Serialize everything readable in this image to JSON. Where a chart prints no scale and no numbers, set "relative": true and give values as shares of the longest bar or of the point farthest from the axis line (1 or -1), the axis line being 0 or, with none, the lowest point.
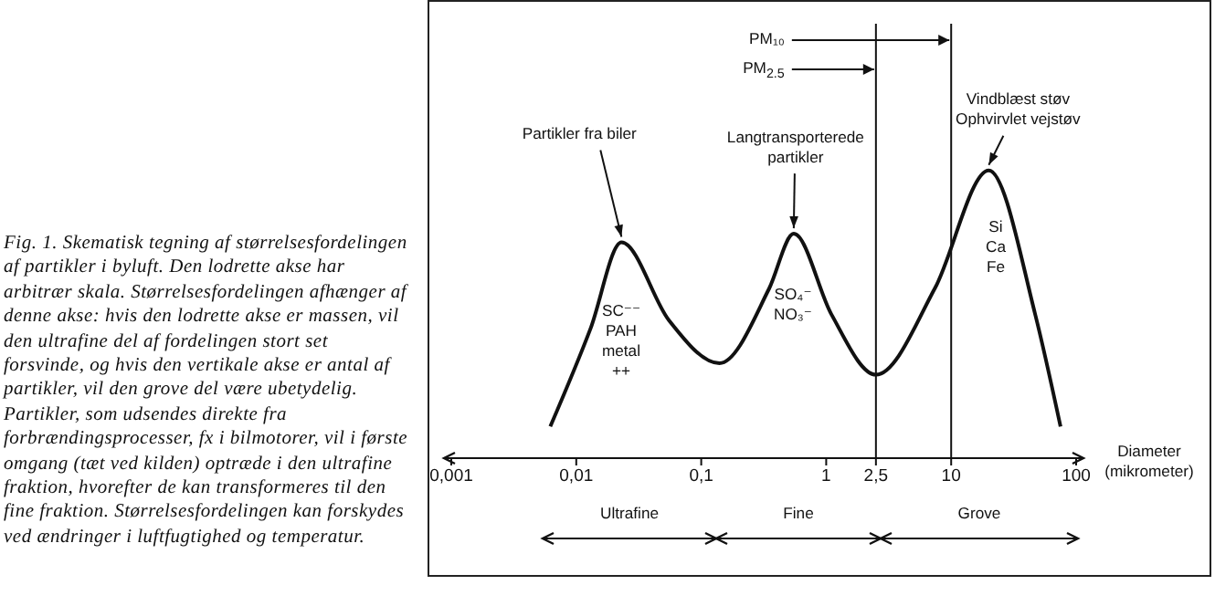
{
  "chart_data": {
    "type": "line",
    "relative": true,
    "log": "x",
    "xlim": [
      0.001,
      100
    ],
    "xticks": [
      {
        "value": 0.001,
        "label": "0,001"
      },
      {
        "value": 0.01,
        "label": "0,01"
      },
      {
        "value": 0.1,
        "label": "0,1"
      },
      1,
      {
        "value": 2.5,
        "label": "2,5"
      },
      10,
      100
    ],
    "xlabel": "Diameter (mikrometer)",
    "x": [
      0.0062,
      0.013,
      0.023,
      0.055,
      0.14,
      0.35,
      0.55,
      1.1,
      2.5,
      7.4,
      20,
      47,
      75
    ],
    "series": [
      {
        "color": "#111111",
        "values": [
          0.11,
          0.45,
          0.75,
          0.48,
          0.33,
          0.59,
          0.78,
          0.5,
          0.29,
          0.59,
          1,
          0.5,
          0.11
        ]
      }
    ],
    "marker": "none",
    "ref_lines": [
      {
        "axis": "x",
        "value": 10,
        "label": "PM₁₀"
      },
      {
        "axis": "x",
        "value": 2.5,
        "label": "PM$_{2.5}$"
      }
    ],
    "annotations": [
      "Fig. 1. Skematisk tegning af størrelsesfordelingen af partikler i byluft. Den lodrette akse har arbitrær skala. Størrelsesfordelingen afhænger af denne akse: hvis den lodrette akse er massen, vil den ultrafine del af fordelingen stort set forsvinde, og hvis den vertikale akse er antal af partikler, vil den grove del være ubetydelig. Partikler, som udsendes direkte fra forbrændingsprocesser, fx i bilmotorer, vil i første omgang (tæt ved kilden) optræde i den ultrafine fraktion, hvorefter de kan transformeres til den fine fraktion. Størrelsesfordelingen kan forskydes ved ændringer i luftfugtighed og temperatur.",
      {
        "text": "Partikler fra biler",
        "x": 0.023,
        "y": 0.75
      },
      "SC⁻⁻\nPAH\nmetal\n++",
      {
        "text": "Langtransporterede\npartikler",
        "x": 0.55,
        "y": 0.78
      },
      "SO₄⁻\nNO₃⁻",
      {
        "text": "Vindblæst støv\nOphvirvlet vejstøv",
        "x": 20,
        "y": 1
      },
      "Si\nCa\nFe",
      "Ultrafine",
      "Fine",
      "Grove"
    ]
  }
}
